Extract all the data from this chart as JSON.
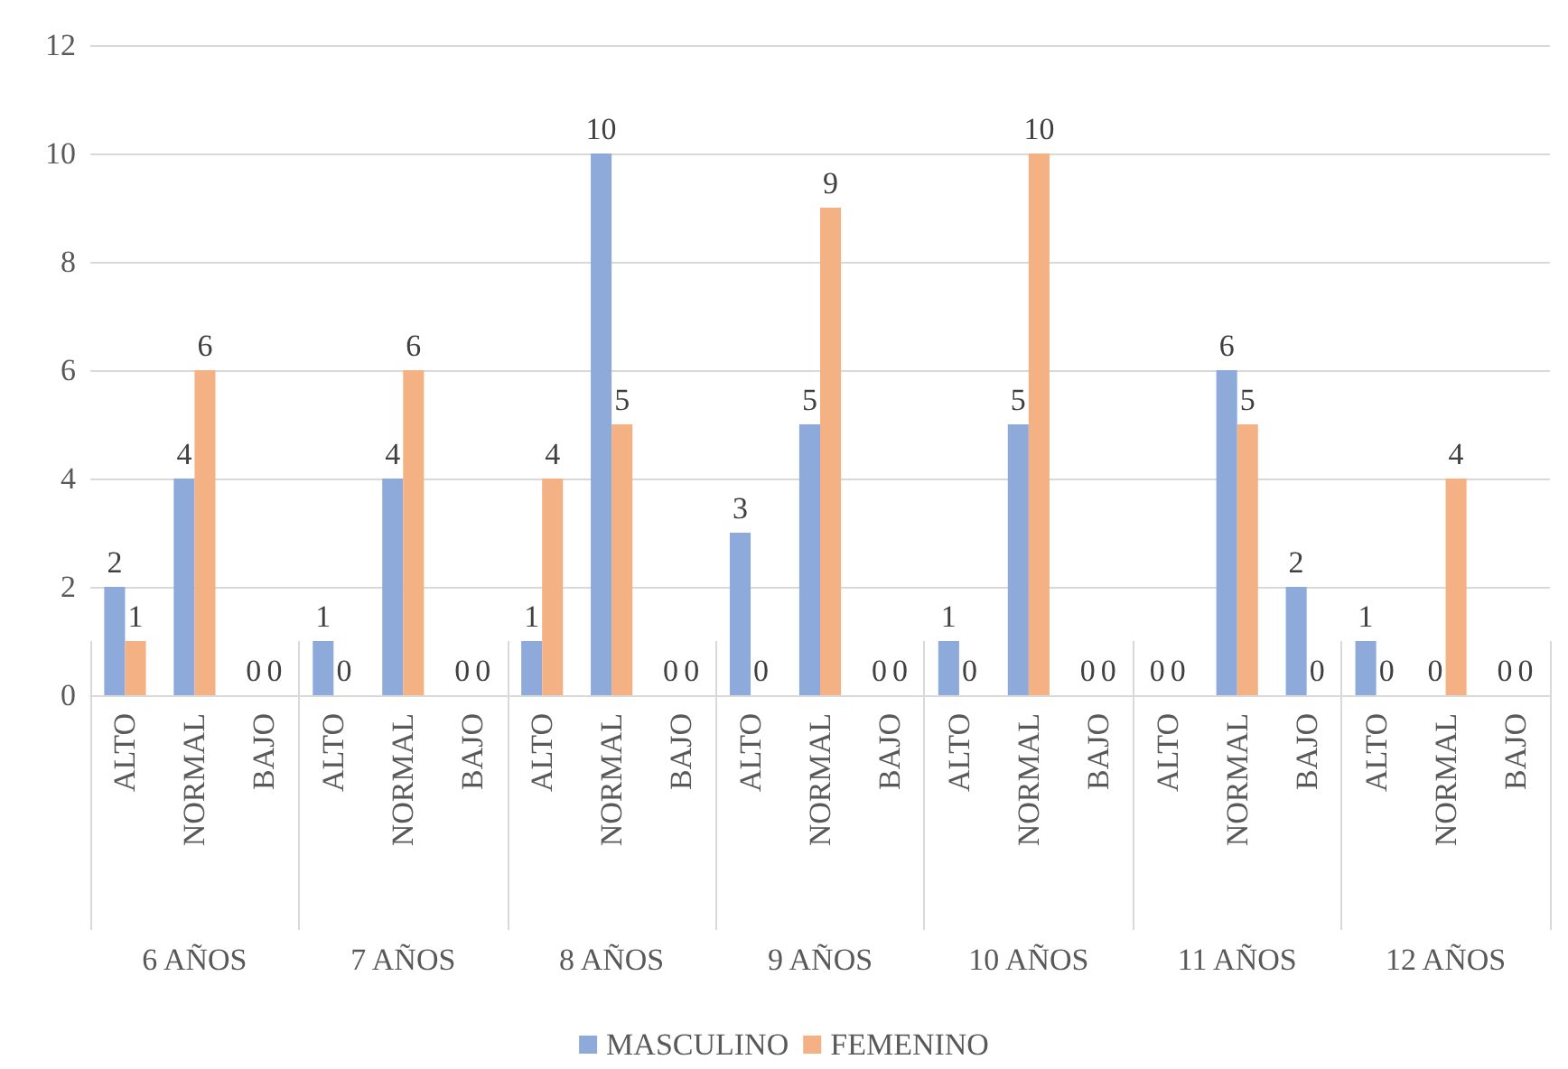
{
  "chart_data": {
    "type": "bar",
    "categories": [
      "ALTO",
      "NORMAL",
      "BAJO",
      "ALTO",
      "NORMAL",
      "BAJO",
      "ALTO",
      "NORMAL",
      "BAJO",
      "ALTO",
      "NORMAL",
      "BAJO",
      "ALTO",
      "NORMAL",
      "BAJO",
      "ALTO",
      "NORMAL",
      "BAJO",
      "ALTO",
      "NORMAL",
      "BAJO"
    ],
    "annotations": [
      "6 AÑOS",
      "7 AÑOS",
      "8 AÑOS",
      "9 AÑOS",
      "10 AÑOS",
      "11 AÑOS",
      "12 AÑOS"
    ],
    "series": [
      {
        "name": "MASCULINO",
        "color": "#8eaadb",
        "values": [
          2,
          4,
          0,
          1,
          4,
          0,
          1,
          10,
          0,
          3,
          5,
          0,
          1,
          5,
          0,
          0,
          6,
          2,
          1,
          0,
          0
        ]
      },
      {
        "name": "FEMENINO",
        "color": "#f4b183",
        "values": [
          1,
          6,
          0,
          0,
          6,
          0,
          4,
          5,
          0,
          0,
          9,
          0,
          0,
          10,
          0,
          0,
          5,
          0,
          0,
          4,
          0
        ]
      }
    ],
    "ylim": [
      0,
      12
    ],
    "yticks": [
      0,
      2,
      4,
      6,
      8,
      10,
      12
    ],
    "grid": "y",
    "legend": "bottom",
    "data_labels": true
  }
}
